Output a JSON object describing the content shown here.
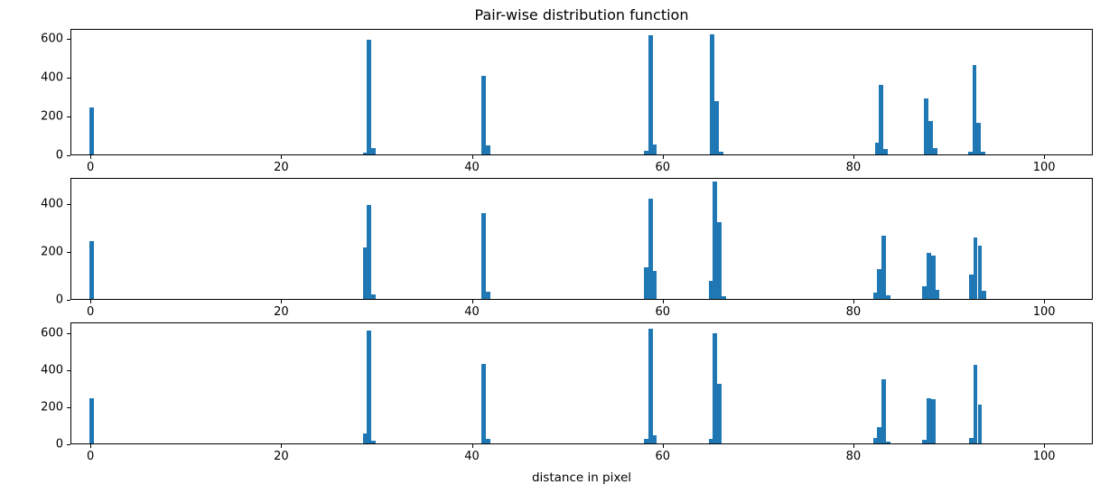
{
  "figure": {
    "title": "Pair-wise distribution function",
    "xlabel": "distance in pixel",
    "bar_color": "#1f77b4",
    "background": "#ffffff"
  },
  "chart_data": [
    {
      "type": "bar",
      "name": "pairwise-distribution-top",
      "title": "Pair-wise distribution function",
      "xlabel": "",
      "ylabel": "",
      "xlim": [
        -2.1,
        105.1
      ],
      "ylim": [
        0,
        650
      ],
      "xticks": [
        0,
        20,
        40,
        60,
        80,
        100
      ],
      "yticks": [
        0,
        200,
        400,
        600
      ],
      "bar_width": 0.45,
      "bars": [
        {
          "x": -0.2,
          "count": 245
        },
        {
          "x": 28.5,
          "count": 10
        },
        {
          "x": 28.95,
          "count": 600
        },
        {
          "x": 29.4,
          "count": 35
        },
        {
          "x": 41.0,
          "count": 410
        },
        {
          "x": 41.45,
          "count": 45
        },
        {
          "x": 58.05,
          "count": 20
        },
        {
          "x": 58.5,
          "count": 620
        },
        {
          "x": 58.95,
          "count": 50
        },
        {
          "x": 65.0,
          "count": 625
        },
        {
          "x": 65.45,
          "count": 280
        },
        {
          "x": 65.9,
          "count": 15
        },
        {
          "x": 82.3,
          "count": 60
        },
        {
          "x": 82.75,
          "count": 365
        },
        {
          "x": 83.2,
          "count": 30
        },
        {
          "x": 87.5,
          "count": 290
        },
        {
          "x": 87.95,
          "count": 175
        },
        {
          "x": 88.4,
          "count": 35
        },
        {
          "x": 92.1,
          "count": 15
        },
        {
          "x": 92.55,
          "count": 465
        },
        {
          "x": 93.0,
          "count": 165
        },
        {
          "x": 93.45,
          "count": 12
        }
      ]
    },
    {
      "type": "bar",
      "name": "pairwise-distribution-middle",
      "title": "",
      "xlabel": "",
      "ylabel": "",
      "xlim": [
        -2.1,
        105.1
      ],
      "ylim": [
        0,
        510
      ],
      "xticks": [
        0,
        20,
        40,
        60,
        80,
        100
      ],
      "yticks": [
        0,
        200,
        400
      ],
      "bar_width": 0.45,
      "bars": [
        {
          "x": -0.2,
          "count": 245
        },
        {
          "x": 28.5,
          "count": 220
        },
        {
          "x": 28.95,
          "count": 400
        },
        {
          "x": 29.4,
          "count": 20
        },
        {
          "x": 41.0,
          "count": 365
        },
        {
          "x": 41.45,
          "count": 30
        },
        {
          "x": 58.05,
          "count": 135
        },
        {
          "x": 58.5,
          "count": 425
        },
        {
          "x": 58.95,
          "count": 120
        },
        {
          "x": 64.85,
          "count": 75
        },
        {
          "x": 65.3,
          "count": 500
        },
        {
          "x": 65.75,
          "count": 325
        },
        {
          "x": 66.2,
          "count": 10
        },
        {
          "x": 82.1,
          "count": 25
        },
        {
          "x": 82.55,
          "count": 125
        },
        {
          "x": 83.0,
          "count": 270
        },
        {
          "x": 83.45,
          "count": 15
        },
        {
          "x": 87.3,
          "count": 55
        },
        {
          "x": 87.75,
          "count": 195
        },
        {
          "x": 88.2,
          "count": 185
        },
        {
          "x": 88.65,
          "count": 40
        },
        {
          "x": 92.2,
          "count": 105
        },
        {
          "x": 92.65,
          "count": 260
        },
        {
          "x": 93.1,
          "count": 225
        },
        {
          "x": 93.55,
          "count": 35
        }
      ]
    },
    {
      "type": "bar",
      "name": "pairwise-distribution-bottom",
      "title": "",
      "xlabel": "distance in pixel",
      "ylabel": "",
      "xlim": [
        -2.1,
        105.1
      ],
      "ylim": [
        0,
        660
      ],
      "xticks": [
        0,
        20,
        40,
        60,
        80,
        100
      ],
      "yticks": [
        0,
        200,
        400,
        600
      ],
      "bar_width": 0.45,
      "bars": [
        {
          "x": -0.2,
          "count": 250
        },
        {
          "x": 28.5,
          "count": 55
        },
        {
          "x": 28.95,
          "count": 620
        },
        {
          "x": 29.4,
          "count": 15
        },
        {
          "x": 41.0,
          "count": 435
        },
        {
          "x": 41.45,
          "count": 25
        },
        {
          "x": 58.05,
          "count": 25
        },
        {
          "x": 58.5,
          "count": 630
        },
        {
          "x": 58.95,
          "count": 45
        },
        {
          "x": 64.85,
          "count": 25
        },
        {
          "x": 65.3,
          "count": 605
        },
        {
          "x": 65.75,
          "count": 330
        },
        {
          "x": 82.1,
          "count": 30
        },
        {
          "x": 82.55,
          "count": 90
        },
        {
          "x": 83.0,
          "count": 350
        },
        {
          "x": 83.45,
          "count": 10
        },
        {
          "x": 87.3,
          "count": 20
        },
        {
          "x": 87.75,
          "count": 250
        },
        {
          "x": 88.2,
          "count": 245
        },
        {
          "x": 92.2,
          "count": 30
        },
        {
          "x": 92.65,
          "count": 430
        },
        {
          "x": 93.1,
          "count": 215
        }
      ]
    }
  ]
}
